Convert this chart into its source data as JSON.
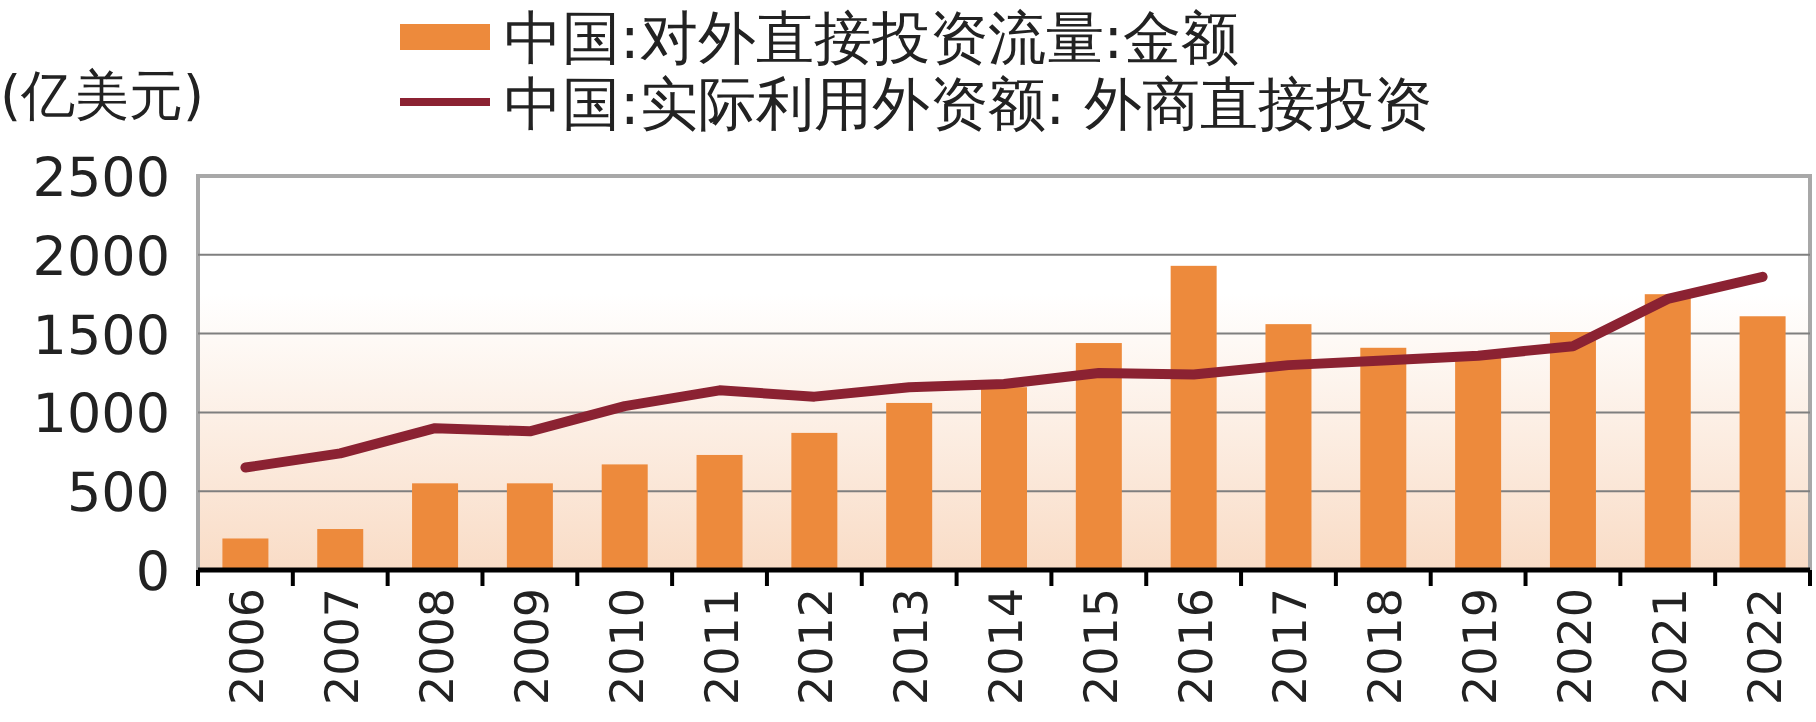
{
  "chart_data": {
    "type": "bar",
    "ylabel": "(亿美元)",
    "categories": [
      "2006",
      "2007",
      "2008",
      "2009",
      "2010",
      "2011",
      "2012",
      "2013",
      "2014",
      "2015",
      "2016",
      "2017",
      "2018",
      "2019",
      "2020",
      "2021",
      "2022"
    ],
    "series": [
      {
        "name": "中国:对外直接投资流量:金额",
        "color": "#ed8a3c",
        "values": [
          200,
          260,
          550,
          550,
          670,
          730,
          870,
          1060,
          1160,
          1440,
          1930,
          1560,
          1410,
          1360,
          1510,
          1750,
          1610
        ]
      },
      {
        "name": "中国:实际利用外资额: 外商直接投资",
        "type": "line",
        "color": "#8b2232",
        "values": [
          650,
          740,
          900,
          880,
          1040,
          1140,
          1100,
          1160,
          1180,
          1250,
          1240,
          1300,
          1330,
          1360,
          1420,
          1720,
          1860
        ]
      }
    ],
    "ylim": [
      0,
      2500
    ],
    "yticks": [
      0,
      500,
      1000,
      1500,
      2000,
      2500
    ],
    "grid": "y",
    "legend": "top",
    "marker": "none",
    "line_style": "solid"
  }
}
